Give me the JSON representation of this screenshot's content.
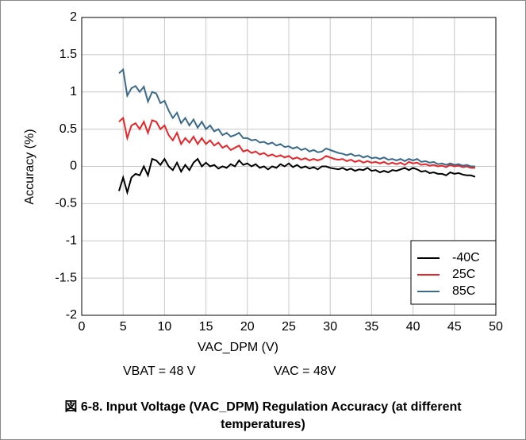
{
  "chart_data": {
    "type": "line",
    "caption": "図 6-8. Input Voltage (VAC_DPM) Regulation Accuracy (at different temperatures)",
    "x_label": "VAC_DPM (V)",
    "y_label": "Accuracy (%)",
    "annotations": [
      "VBAT = 48 V",
      "VAC = 48V"
    ],
    "x": [
      4.5,
      5,
      5.5,
      6,
      6.5,
      7,
      7.5,
      8,
      8.5,
      9,
      9.5,
      10,
      10.5,
      11,
      11.5,
      12,
      12.5,
      13,
      13.5,
      14,
      14.5,
      15,
      15.5,
      16,
      16.5,
      17,
      17.5,
      18,
      18.5,
      19,
      19.5,
      20,
      20.5,
      21,
      21.5,
      22,
      22.5,
      23,
      23.5,
      24,
      24.5,
      25,
      25.5,
      26,
      26.5,
      27,
      27.5,
      28,
      28.5,
      29,
      29.5,
      30,
      30.5,
      31,
      31.5,
      32,
      32.5,
      33,
      33.5,
      34,
      34.5,
      35,
      35.5,
      36,
      36.5,
      37,
      37.5,
      38,
      38.5,
      39,
      39.5,
      40,
      40.5,
      41,
      41.5,
      42,
      42.5,
      43,
      43.5,
      44,
      44.5,
      45,
      45.5,
      46,
      46.5,
      47,
      47.5
    ],
    "series": [
      {
        "name": "-40C",
        "color": "#000000",
        "values": [
          -0.33,
          -0.15,
          -0.35,
          -0.15,
          -0.1,
          -0.12,
          0.0,
          -0.12,
          0.1,
          0.08,
          0.02,
          0.1,
          0.0,
          -0.05,
          0.05,
          -0.07,
          0.02,
          -0.05,
          0.05,
          0.1,
          0.0,
          0.05,
          0.0,
          0.02,
          -0.03,
          0.0,
          -0.02,
          0.03,
          0.0,
          0.08,
          0.02,
          0.04,
          0.0,
          0.03,
          -0.02,
          0.0,
          -0.04,
          0.0,
          -0.02,
          0.03,
          0.0,
          0.04,
          -0.01,
          0.02,
          -0.02,
          0.0,
          -0.03,
          -0.01,
          -0.04,
          0.0,
          0.0,
          -0.02,
          -0.03,
          -0.04,
          -0.02,
          -0.05,
          -0.03,
          -0.06,
          -0.04,
          -0.05,
          -0.02,
          -0.06,
          -0.05,
          -0.08,
          -0.06,
          -0.08,
          -0.05,
          -0.06,
          -0.04,
          -0.02,
          -0.05,
          -0.02,
          -0.04,
          -0.07,
          -0.06,
          -0.09,
          -0.08,
          -0.1,
          -0.1,
          -0.12,
          -0.08,
          -0.1,
          -0.09,
          -0.11,
          -0.12,
          -0.12,
          -0.14
        ]
      },
      {
        "name": "25C",
        "color": "#e8262a",
        "values": [
          0.6,
          0.65,
          0.38,
          0.55,
          0.58,
          0.5,
          0.6,
          0.45,
          0.62,
          0.6,
          0.5,
          0.55,
          0.42,
          0.35,
          0.45,
          0.3,
          0.38,
          0.32,
          0.4,
          0.3,
          0.38,
          0.3,
          0.35,
          0.28,
          0.32,
          0.25,
          0.28,
          0.22,
          0.25,
          0.28,
          0.2,
          0.22,
          0.18,
          0.2,
          0.16,
          0.18,
          0.14,
          0.16,
          0.13,
          0.15,
          0.12,
          0.14,
          0.1,
          0.12,
          0.09,
          0.11,
          0.08,
          0.1,
          0.08,
          0.1,
          0.14,
          0.12,
          0.1,
          0.09,
          0.1,
          0.07,
          0.09,
          0.06,
          0.08,
          0.05,
          0.07,
          0.05,
          0.06,
          0.04,
          0.06,
          0.03,
          0.05,
          0.03,
          0.05,
          0.02,
          0.06,
          0.04,
          0.05,
          0.02,
          0.03,
          0.01,
          0.02,
          0,
          0.01,
          -0.01,
          0.02,
          0,
          0.01,
          -0.01,
          0,
          -0.02,
          -0.02
        ]
      },
      {
        "name": "85C",
        "color": "#3a6b8a",
        "values": [
          1.25,
          1.3,
          0.95,
          1.05,
          1.08,
          1.0,
          1.07,
          0.87,
          1.0,
          0.98,
          0.85,
          0.88,
          0.75,
          0.65,
          0.72,
          0.58,
          0.65,
          0.55,
          0.63,
          0.52,
          0.6,
          0.5,
          0.55,
          0.47,
          0.5,
          0.42,
          0.45,
          0.4,
          0.42,
          0.45,
          0.38,
          0.38,
          0.35,
          0.36,
          0.32,
          0.33,
          0.3,
          0.32,
          0.28,
          0.3,
          0.26,
          0.27,
          0.24,
          0.26,
          0.22,
          0.24,
          0.2,
          0.22,
          0.19,
          0.2,
          0.24,
          0.22,
          0.2,
          0.18,
          0.17,
          0.15,
          0.17,
          0.14,
          0.15,
          0.12,
          0.14,
          0.11,
          0.12,
          0.1,
          0.12,
          0.09,
          0.1,
          0.08,
          0.1,
          0.07,
          0.1,
          0.08,
          0.1,
          0.06,
          0.07,
          0.05,
          0.06,
          0.03,
          0.04,
          0.02,
          0.04,
          0.02,
          0.03,
          0.01,
          0.02,
          0,
          0
        ]
      }
    ],
    "xlim": [
      0,
      50
    ],
    "xticks": [
      0,
      5,
      10,
      15,
      20,
      25,
      30,
      35,
      40,
      45,
      50
    ],
    "ylim": [
      -2,
      2
    ],
    "yticks": [
      -2,
      -1.5,
      -1,
      -0.5,
      0,
      0.5,
      1,
      1.5,
      2
    ],
    "grid": true,
    "legend": "lower right"
  }
}
